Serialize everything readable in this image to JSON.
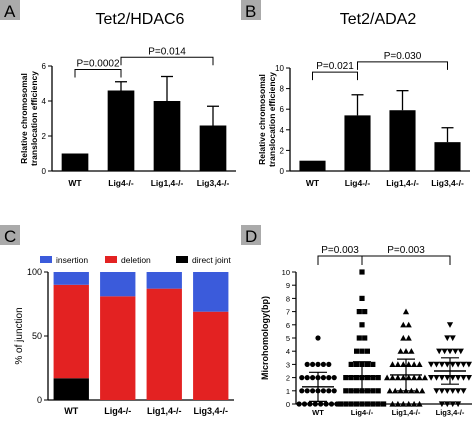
{
  "colors": {
    "bar": "#000000",
    "insertion": "#3b5bdb",
    "deletion": "#e32222",
    "direct_joint": "#000000",
    "grey_label": "#b3b3b3"
  },
  "chart_data": [
    {
      "panel": "A",
      "type": "bar",
      "title": "Tet2/HDAC6",
      "ylabel_lines": [
        "Relative chromosomal",
        "translocation efficiency"
      ],
      "categories": [
        "WT",
        "Lig4-/-",
        "Lig1,4-/-",
        "Lig3,4-/-"
      ],
      "values": [
        1.0,
        4.6,
        4.0,
        2.6
      ],
      "errors": [
        0,
        0.5,
        1.4,
        1.1
      ],
      "ylim": [
        0,
        6
      ],
      "yticks": [
        0,
        2,
        4,
        6
      ],
      "annotations": [
        {
          "from": 0,
          "to": 1,
          "text": "P=0.0002",
          "level": 5.8
        },
        {
          "from": 1,
          "to": 3,
          "text": "P=0.014",
          "level": 6.5
        }
      ]
    },
    {
      "panel": "B",
      "type": "bar",
      "title": "Tet2/ADA2",
      "ylabel_lines": [
        "Relative chromosomal",
        "translocation efficiency"
      ],
      "categories": [
        "WT",
        "Lig4-/-",
        "Lig1,4-/-",
        "Lig3,4-/-"
      ],
      "values": [
        1.0,
        5.4,
        5.9,
        2.8
      ],
      "errors": [
        0,
        2.0,
        1.9,
        1.4
      ],
      "ylim": [
        0,
        10
      ],
      "yticks": [
        0,
        2,
        4,
        6,
        8,
        10
      ],
      "annotations": [
        {
          "from": 0,
          "to": 1,
          "text": "P=0.021",
          "level": 9.6
        },
        {
          "from": 1,
          "to": 3,
          "text": "P=0.030",
          "level": 10.6
        }
      ]
    },
    {
      "panel": "C",
      "type": "bar",
      "stacked": true,
      "ylabel": "% of junction",
      "categories": [
        "WT",
        "Lig4-/-",
        "Lig1,4-/-",
        "Lig3,4-/-"
      ],
      "series": [
        {
          "name": "direct joint",
          "values": [
            17,
            0,
            0,
            0
          ]
        },
        {
          "name": "deletion",
          "values": [
            73,
            81,
            87,
            69
          ]
        },
        {
          "name": "insertion",
          "values": [
            10,
            19,
            13,
            31
          ]
        }
      ],
      "ylim": [
        0,
        100
      ],
      "yticks": [
        0,
        50,
        100
      ],
      "legend": [
        "insertion",
        "deletion",
        "direct joint"
      ],
      "legend_position": "top"
    },
    {
      "panel": "D",
      "type": "scatter",
      "ylabel": "Microhomology(bp)",
      "categories": [
        "WT",
        "Lig4-/-",
        "Lig1,4-/-",
        "Lig3,4-/-"
      ],
      "means": [
        1.3,
        2.1,
        2.2,
        2.5
      ],
      "sd": [
        1.1,
        1.1,
        1.2,
        1.0
      ],
      "ylim": [
        0,
        10
      ],
      "yticks": [
        0,
        1,
        2,
        3,
        4,
        5,
        6,
        7,
        8,
        9,
        10
      ],
      "annotations": [
        {
          "from": 0,
          "to": 1,
          "text": "P=0.003",
          "level": 10.2
        },
        {
          "from": 1,
          "to": 3,
          "text": "P=0.003",
          "level": 10.2
        }
      ],
      "points": [
        {
          "category": 0,
          "marker": "circle",
          "y": [
            0,
            0,
            0,
            0,
            0,
            0,
            0,
            0,
            1,
            1,
            1,
            1,
            1,
            1,
            1,
            2,
            2,
            2,
            2,
            2,
            2,
            2,
            3,
            3,
            3,
            3,
            3,
            5
          ]
        },
        {
          "category": 1,
          "marker": "square",
          "y": [
            0,
            0,
            0,
            0,
            0,
            0,
            0,
            0,
            0,
            1,
            1,
            1,
            1,
            1,
            1,
            1,
            2,
            2,
            2,
            2,
            2,
            2,
            2,
            3,
            3,
            3,
            3,
            3,
            4,
            4,
            4,
            5,
            5,
            6,
            7,
            7,
            8,
            10
          ]
        },
        {
          "category": 2,
          "marker": "triangle",
          "y": [
            0,
            0,
            0,
            0,
            0,
            0,
            1,
            1,
            1,
            1,
            1,
            1,
            1,
            2,
            2,
            2,
            2,
            2,
            2,
            2,
            2,
            3,
            3,
            3,
            3,
            3,
            3,
            4,
            4,
            4,
            5,
            5,
            6,
            6,
            7
          ]
        },
        {
          "category": 3,
          "marker": "triangle-down",
          "y": [
            0,
            0,
            0,
            0,
            1,
            1,
            1,
            1,
            1,
            1,
            2,
            2,
            2,
            2,
            2,
            2,
            2,
            2,
            3,
            3,
            3,
            3,
            3,
            3,
            3,
            3,
            4,
            4,
            4,
            4,
            4,
            5,
            5,
            6
          ]
        }
      ]
    }
  ]
}
